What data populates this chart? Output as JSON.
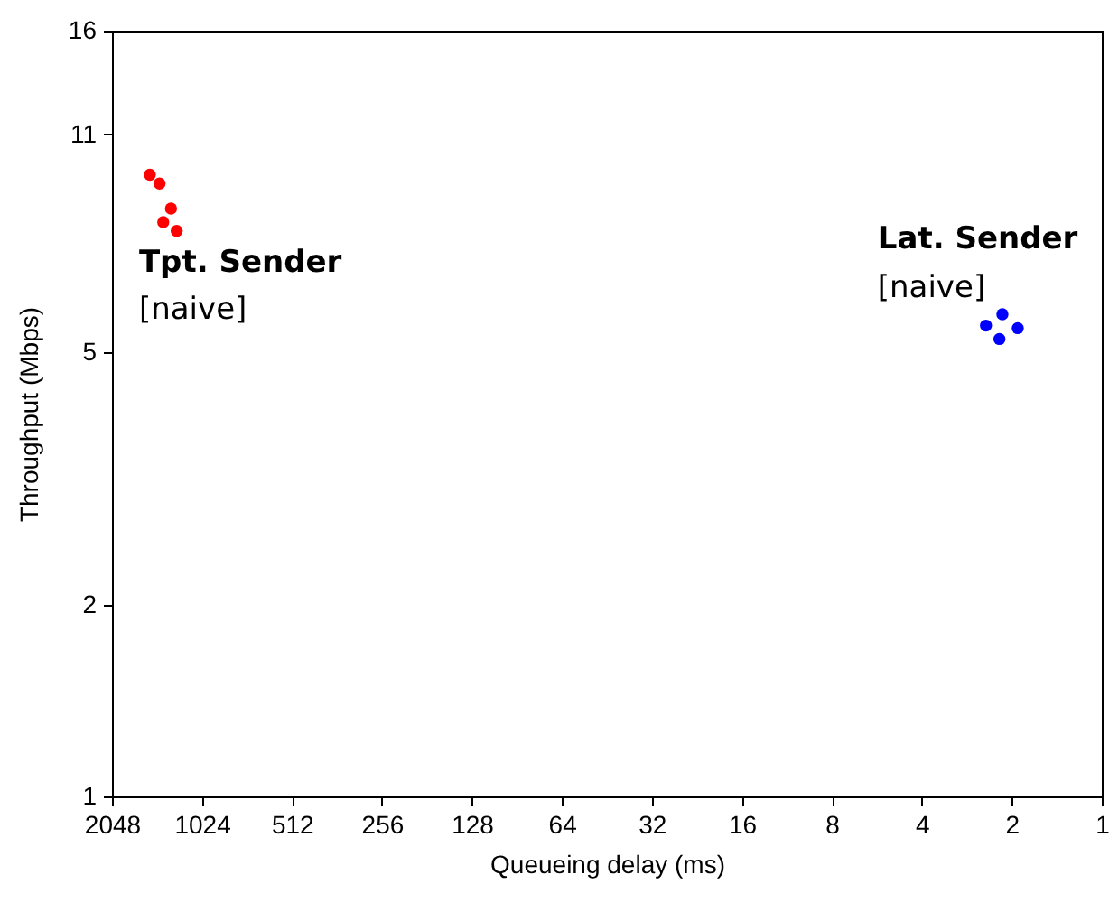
{
  "chart_data": {
    "type": "scatter",
    "xlabel": "Queueing delay (ms)",
    "ylabel": "Throughput (Mbps)",
    "log": "xy",
    "xlim": [
      2048,
      1
    ],
    "xticks": [
      2048,
      1024,
      512,
      256,
      128,
      64,
      32,
      16,
      8,
      4,
      2,
      1
    ],
    "ylim": [
      1,
      16
    ],
    "yticks": [
      1,
      2,
      5,
      11,
      16
    ],
    "grid": false,
    "marker": "circle",
    "series": [
      {
        "name": "Tpt. Sender",
        "color": "#ff0000",
        "x": [
          1530,
          1420,
          1300,
          1244,
          1380
        ],
        "values": [
          9.5,
          9.2,
          8.4,
          7.75,
          8.0
        ]
      },
      {
        "name": "Lat. Sender",
        "color": "#0000ff",
        "x": [
          2.44,
          2.15,
          1.91,
          2.2
        ],
        "values": [
          5.5,
          5.73,
          5.45,
          5.24
        ]
      }
    ],
    "annotations": [
      "[naive]",
      "[naive]"
    ]
  }
}
